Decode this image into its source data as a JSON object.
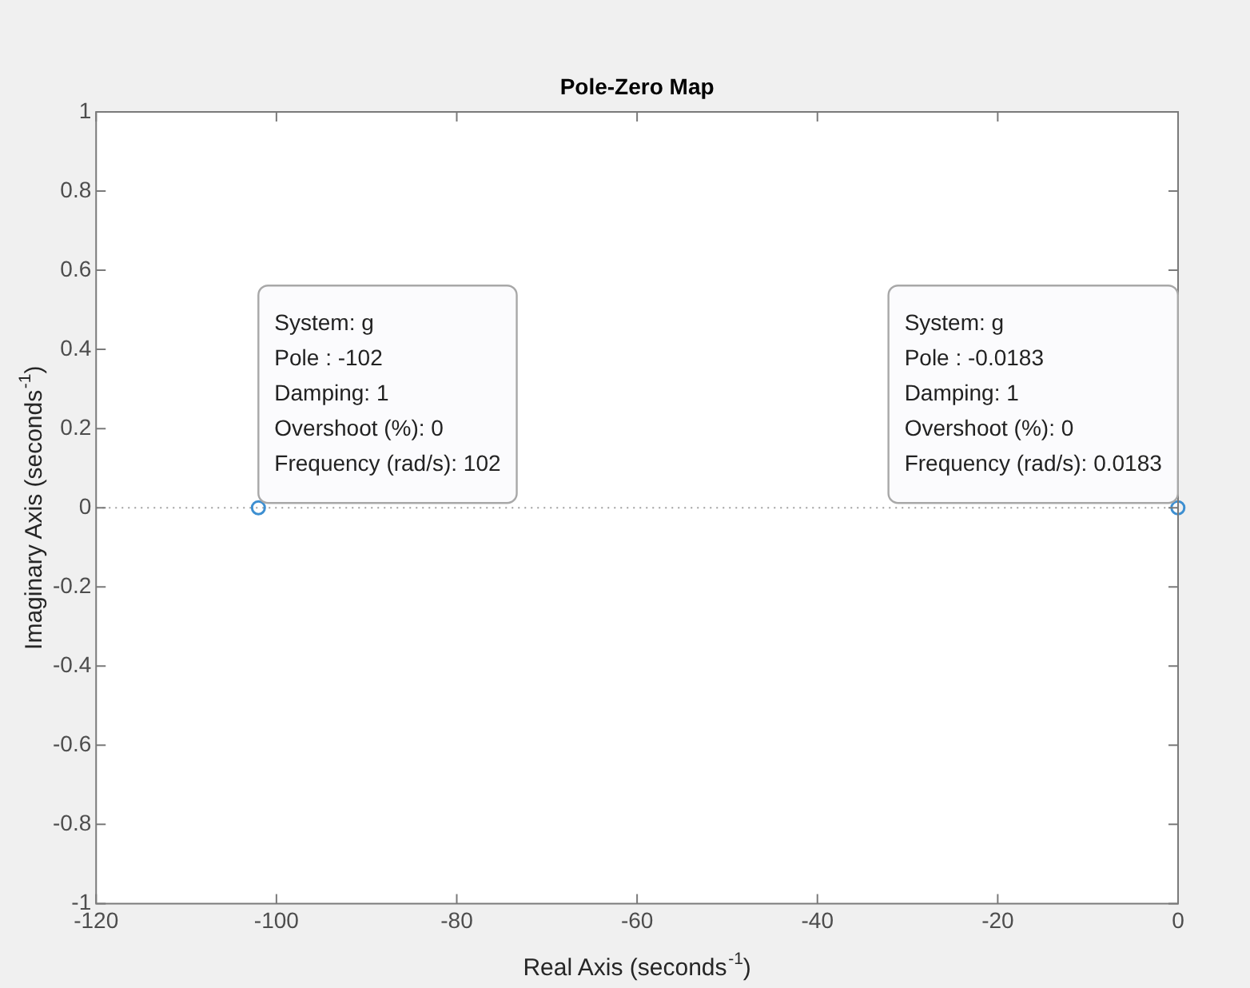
{
  "chart_data": {
    "type": "scatter",
    "title": "Pole-Zero Map",
    "xlabel": "Real Axis (seconds$^{-1}$)",
    "ylabel": "Imaginary Axis (seconds$^{-1}$)",
    "x": [
      -102,
      -0.0183
    ],
    "series": [
      {
        "color": "#3d8fd1",
        "values": [
          0,
          0
        ]
      }
    ],
    "marker": "circle",
    "xlim": [
      -120,
      0
    ],
    "xticks": [
      -120,
      -100,
      -80,
      -60,
      -40,
      -20,
      0
    ],
    "ylim": [
      -1,
      1
    ],
    "yticks": [
      -1,
      -0.8,
      -0.6,
      -0.4,
      -0.2,
      0,
      0.2,
      0.4,
      0.6,
      0.8,
      1
    ],
    "ref_lines": [
      {
        "axis": "y",
        "value": 0,
        "color": "#a0a0a0",
        "line_style": "dotted"
      }
    ],
    "annotations": [
      {
        "text": "System: g\nPole : -102\nDamping: 1\nOvershoot (%): 0\nFrequency (rad/s): 102",
        "x": -102,
        "y": 0
      },
      {
        "text": "System: g\nPole : -0.0183\nDamping: 1\nOvershoot (%): 0\nFrequency (rad/s): 0.0183",
        "x": -0.0183,
        "y": 0
      }
    ],
    "grid": false
  }
}
